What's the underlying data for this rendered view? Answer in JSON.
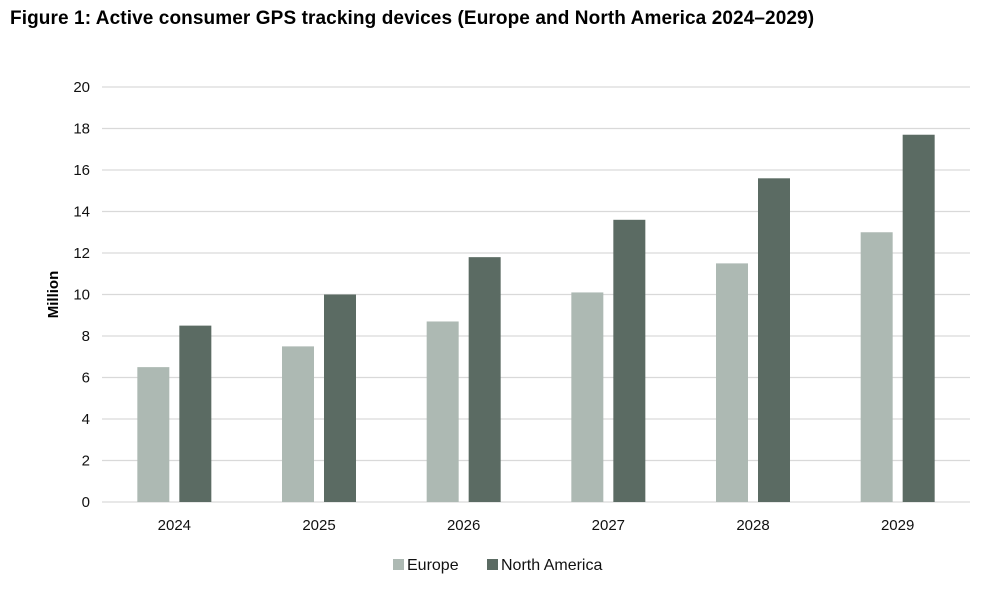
{
  "title": "Figure 1: Active consumer GPS tracking devices (Europe and North America 2024–2029)",
  "chart_data": {
    "type": "bar",
    "title": "Figure 1: Active consumer GPS tracking devices (Europe and North America 2024–2029)",
    "xlabel": "",
    "ylabel": "Million",
    "categories": [
      "2024",
      "2025",
      "2026",
      "2027",
      "2028",
      "2029"
    ],
    "series": [
      {
        "name": "Europe",
        "color": "#adb9b3",
        "values": [
          6.5,
          7.5,
          8.7,
          10.1,
          11.5,
          13.0
        ]
      },
      {
        "name": "North America",
        "color": "#5b6b63",
        "values": [
          8.5,
          10.0,
          11.8,
          13.6,
          15.6,
          17.7
        ]
      }
    ],
    "ylim": [
      0,
      20
    ],
    "yticks": [
      0,
      2,
      4,
      6,
      8,
      10,
      12,
      14,
      16,
      18,
      20
    ],
    "grid": true,
    "gridline_color": "#d9d9d9",
    "legend_position": "bottom-center"
  }
}
